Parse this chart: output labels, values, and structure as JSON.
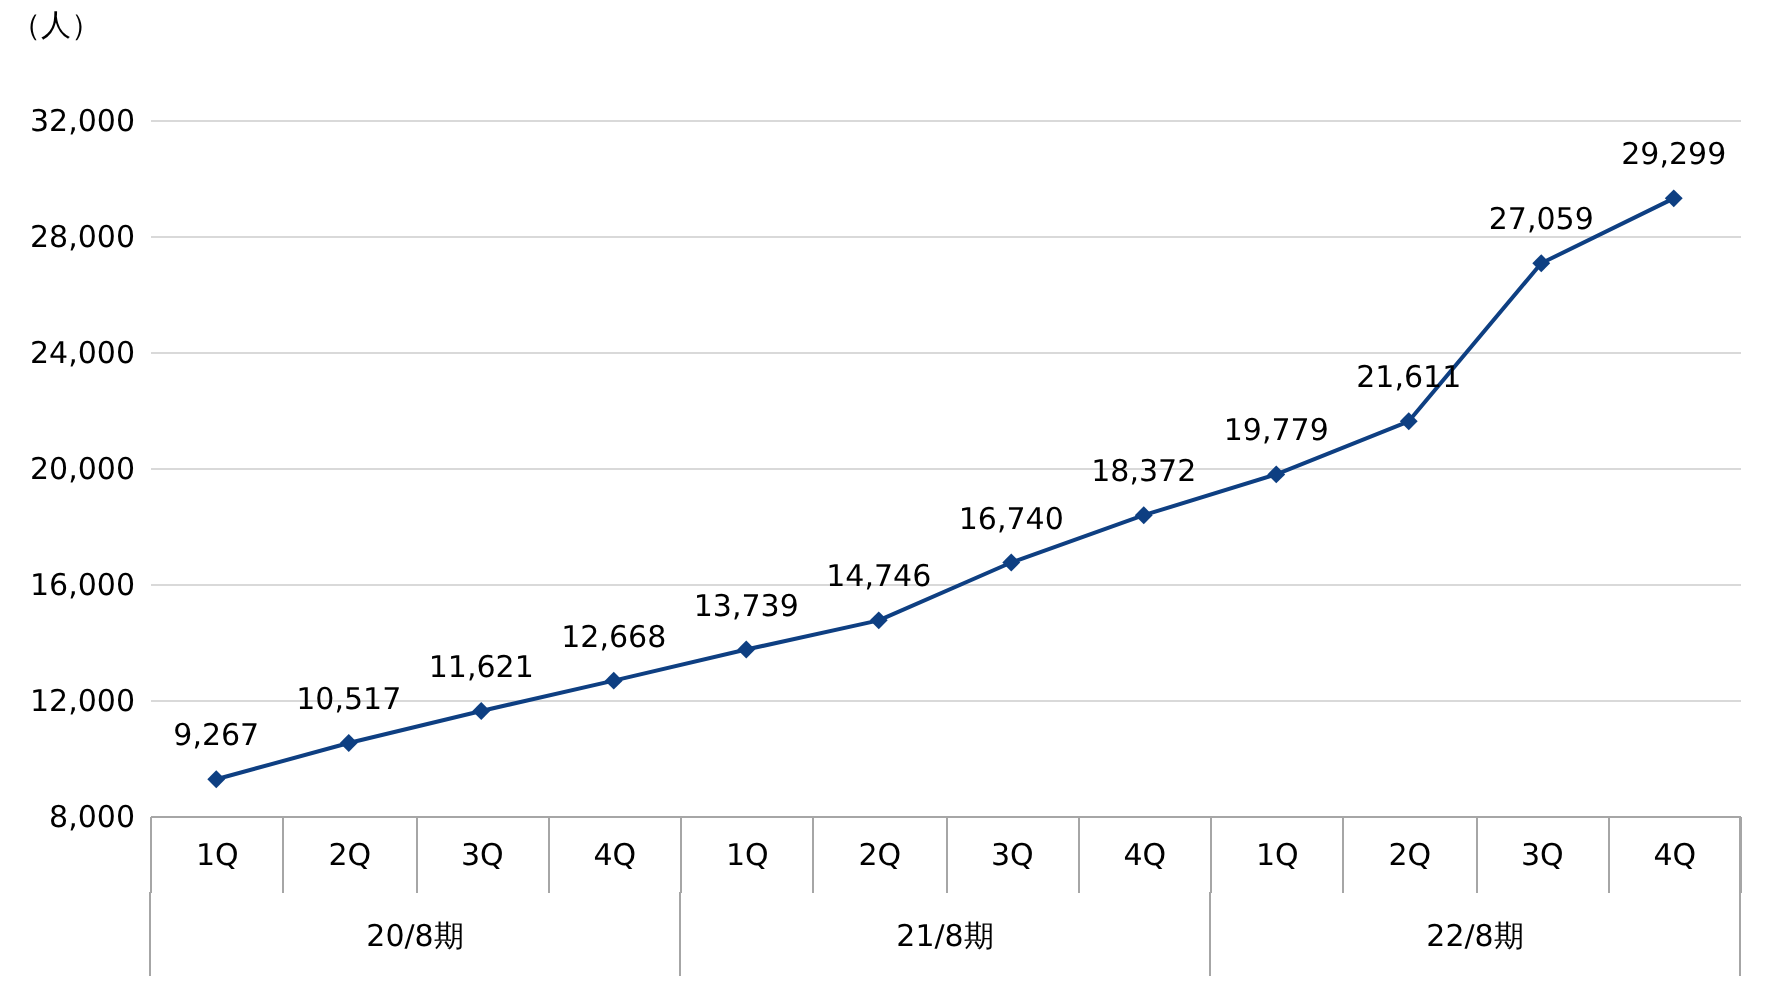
{
  "chart_data": {
    "type": "line",
    "ylabel": "（人）",
    "categories": [
      "1Q",
      "2Q",
      "3Q",
      "4Q",
      "1Q",
      "2Q",
      "3Q",
      "4Q",
      "1Q",
      "2Q",
      "3Q",
      "4Q"
    ],
    "series": [
      {
        "color": "#0e3f82",
        "values": [
          9267,
          10517,
          11621,
          12668,
          13739,
          14746,
          16740,
          18372,
          19779,
          21611,
          27059,
          29299
        ],
        "value_labels": [
          "9,267",
          "10,517",
          "11,621",
          "12,668",
          "13,739",
          "14,746",
          "16,740",
          "18,372",
          "19,779",
          "21,611",
          "27,059",
          "29,299"
        ]
      }
    ],
    "annotations": [
      "20/8期",
      "21/8期",
      "22/8期"
    ],
    "ylim": [
      8000,
      32000
    ],
    "yticks": [
      {
        "value": 8000,
        "label": "8,000"
      },
      {
        "value": 12000,
        "label": "12,000"
      },
      {
        "value": 16000,
        "label": "16,000"
      },
      {
        "value": 20000,
        "label": "20,000"
      },
      {
        "value": 24000,
        "label": "24,000"
      },
      {
        "value": 28000,
        "label": "28,000"
      },
      {
        "value": 32000,
        "label": "32,000"
      }
    ],
    "grid": "y",
    "marker": "diamond",
    "line_style": "solid"
  }
}
